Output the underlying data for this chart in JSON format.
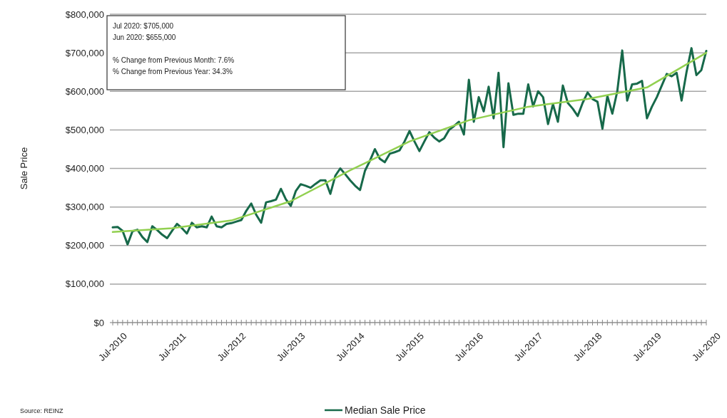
{
  "chart_data": {
    "type": "line",
    "ylabel": "Sale Price",
    "categories": [
      "Jul-2010",
      null,
      null,
      null,
      null,
      null,
      null,
      null,
      null,
      null,
      null,
      null,
      "Jul-2011",
      null,
      null,
      null,
      null,
      null,
      null,
      null,
      null,
      null,
      null,
      null,
      "Jul-2012",
      null,
      null,
      null,
      null,
      null,
      null,
      null,
      null,
      null,
      null,
      null,
      "Jul-2013",
      null,
      null,
      null,
      null,
      null,
      null,
      null,
      null,
      null,
      null,
      null,
      "Jul-2014",
      null,
      null,
      null,
      null,
      null,
      null,
      null,
      null,
      null,
      null,
      null,
      "Jul-2015",
      null,
      null,
      null,
      null,
      null,
      null,
      null,
      null,
      null,
      null,
      null,
      "Jul-2016",
      null,
      null,
      null,
      null,
      null,
      null,
      null,
      null,
      null,
      null,
      null,
      "Jul-2017",
      null,
      null,
      null,
      null,
      null,
      null,
      null,
      null,
      null,
      null,
      null,
      "Jul-2018",
      null,
      null,
      null,
      null,
      null,
      null,
      null,
      null,
      null,
      null,
      null,
      "Jul-2019",
      null,
      null,
      null,
      null,
      null,
      null,
      null,
      null,
      null,
      null,
      null,
      "Jul-2020"
    ],
    "series": [
      {
        "name": "Median Sale Price",
        "color": "#17694a",
        "values": [
          247000,
          248000,
          238000,
          203000,
          237000,
          241000,
          222000,
          209000,
          250000,
          240000,
          228000,
          219000,
          238000,
          256000,
          245000,
          231000,
          259000,
          247000,
          250000,
          247000,
          275000,
          250000,
          247000,
          256000,
          258000,
          262000,
          266000,
          290000,
          309000,
          280000,
          259000,
          312000,
          315000,
          319000,
          347000,
          320000,
          303000,
          341000,
          359000,
          355000,
          350000,
          360000,
          369000,
          369000,
          334000,
          381000,
          400000,
          385000,
          369000,
          355000,
          344000,
          394000,
          420000,
          450000,
          425000,
          416000,
          438000,
          442000,
          447000,
          470000,
          497000,
          470000,
          445000,
          470000,
          494000,
          480000,
          470000,
          478000,
          500000,
          510000,
          521000,
          488000,
          630000,
          521000,
          585000,
          548000,
          612000,
          530000,
          648000,
          455000,
          621000,
          539000,
          542000,
          542000,
          618000,
          561000,
          600000,
          585000,
          515000,
          567000,
          521000,
          615000,
          570000,
          555000,
          536000,
          570000,
          597000,
          580000,
          573000,
          503000,
          588000,
          542000,
          600000,
          706000,
          576000,
          618000,
          620000,
          627000,
          530000,
          560000,
          585000,
          615000,
          645000,
          639000,
          648000,
          576000,
          650000,
          712000,
          642000,
          655000,
          705000
        ]
      },
      {
        "color": "#92d050",
        "x": [
          "Jul-2010",
          "Jul-2011",
          "Jul-2012",
          "Jul-2013",
          "Jul-2014",
          "Jul-2015",
          "Jul-2016",
          "Jul-2017",
          "Jul-2018",
          "Jul-2019",
          "Jul-2020"
        ],
        "values": [
          235000,
          245000,
          265000,
          315000,
          395000,
          470000,
          525000,
          560000,
          580000,
          610000,
          700000
        ]
      }
    ],
    "ylim": [
      0,
      800000
    ],
    "yticks": [
      {
        "value": 0,
        "label": "$0"
      },
      {
        "value": 100000,
        "label": "$100,000"
      },
      {
        "value": 200000,
        "label": "$200,000"
      },
      {
        "value": 300000,
        "label": "$300,000"
      },
      {
        "value": 400000,
        "label": "$400,000"
      },
      {
        "value": 500000,
        "label": "$500,000"
      },
      {
        "value": 600000,
        "label": "$600,000"
      },
      {
        "value": 700000,
        "label": "$700,000"
      },
      {
        "value": 800000,
        "label": "$800,000"
      }
    ],
    "grid": "y",
    "legend": "bottom",
    "annotations": [
      "Jul 2020: $705,000",
      "Jun 2020: $655,000",
      "% Change from Previous Month: 7.6%",
      "% Change from Previous Year: 34.3%",
      "Source: REINZ"
    ]
  }
}
